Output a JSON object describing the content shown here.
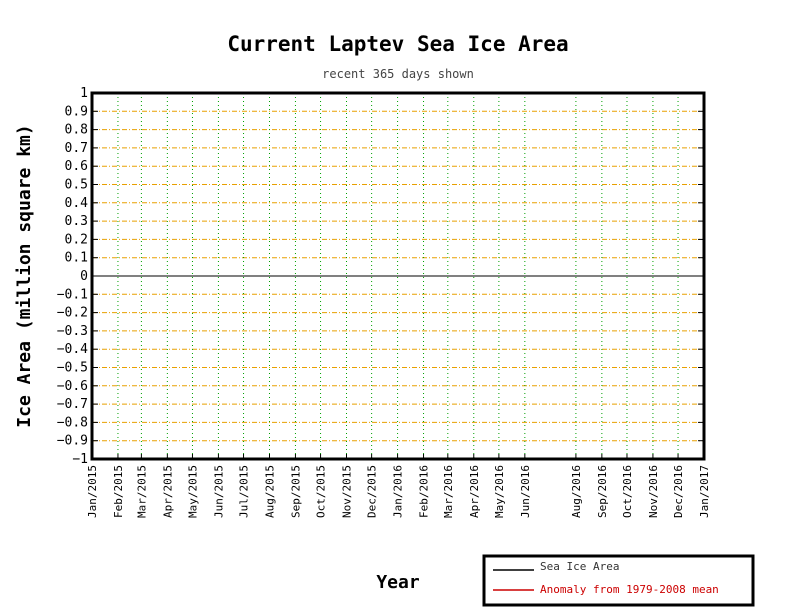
{
  "chart_data": {
    "type": "line",
    "title": "Current Laptev Sea Ice Area",
    "subtitle": "recent 365 days shown",
    "xlabel": "Year",
    "ylabel": "Ice Area (million square km)",
    "ylim": [
      -1,
      1
    ],
    "yticks": [
      "1",
      "0.9",
      "0.8",
      "0.7",
      "0.6",
      "0.5",
      "0.4",
      "0.3",
      "0.2",
      "0.1",
      "0",
      "−0.1",
      "−0.2",
      "−0.3",
      "−0.4",
      "−0.5",
      "−0.6",
      "−0.7",
      "−0.8",
      "−0.9",
      "−1"
    ],
    "ytick_values": [
      1,
      0.9,
      0.8,
      0.7,
      0.6,
      0.5,
      0.4,
      0.3,
      0.2,
      0.1,
      0,
      -0.1,
      -0.2,
      -0.3,
      -0.4,
      -0.5,
      -0.6,
      -0.7,
      -0.8,
      -0.9,
      -1
    ],
    "xlim": [
      "2015-01-01",
      "2017-01-01"
    ],
    "xticks": [
      {
        "label": "Jan/2015",
        "date": "2015-01-01"
      },
      {
        "label": "Feb/2015",
        "date": "2015-02-01"
      },
      {
        "label": "Mar/2015",
        "date": "2015-03-01"
      },
      {
        "label": "Apr/2015",
        "date": "2015-04-01"
      },
      {
        "label": "May/2015",
        "date": "2015-05-01"
      },
      {
        "label": "Jun/2015",
        "date": "2015-06-01"
      },
      {
        "label": "Jul/2015",
        "date": "2015-07-01"
      },
      {
        "label": "Aug/2015",
        "date": "2015-08-01"
      },
      {
        "label": "Sep/2015",
        "date": "2015-09-01"
      },
      {
        "label": "Oct/2015",
        "date": "2015-10-01"
      },
      {
        "label": "Nov/2015",
        "date": "2015-11-01"
      },
      {
        "label": "Dec/2015",
        "date": "2015-12-01"
      },
      {
        "label": "Jan/2016",
        "date": "2016-01-01"
      },
      {
        "label": "Feb/2016",
        "date": "2016-02-01"
      },
      {
        "label": "Mar/2016",
        "date": "2016-03-01"
      },
      {
        "label": "Apr/2016",
        "date": "2016-04-01"
      },
      {
        "label": "May/2016",
        "date": "2016-05-01"
      },
      {
        "label": "Jun/2016",
        "date": "2016-06-01"
      },
      {
        "label": "Aug/2016",
        "date": "2016-08-01"
      },
      {
        "label": "Sep/2016",
        "date": "2016-09-01"
      },
      {
        "label": "Oct/2016",
        "date": "2016-10-01"
      },
      {
        "label": "Nov/2016",
        "date": "2016-11-01"
      },
      {
        "label": "Dec/2016",
        "date": "2016-12-01"
      },
      {
        "label": "Jan/2017",
        "date": "2017-01-01"
      }
    ],
    "series": [
      {
        "name": "Sea Ice Area",
        "color": "#000000",
        "x": [
          "2015-01-01",
          "2017-01-01"
        ],
        "y": [
          0,
          0
        ]
      },
      {
        "name": "Anomaly from 1979-2008 mean",
        "color": "#cc0000",
        "x": [],
        "y": []
      }
    ],
    "grid": {
      "horizontal": true,
      "vertical": true,
      "horizontal_color": "#e8a000",
      "vertical_color": "#00a000"
    },
    "legend_placement": "bottom-right"
  }
}
